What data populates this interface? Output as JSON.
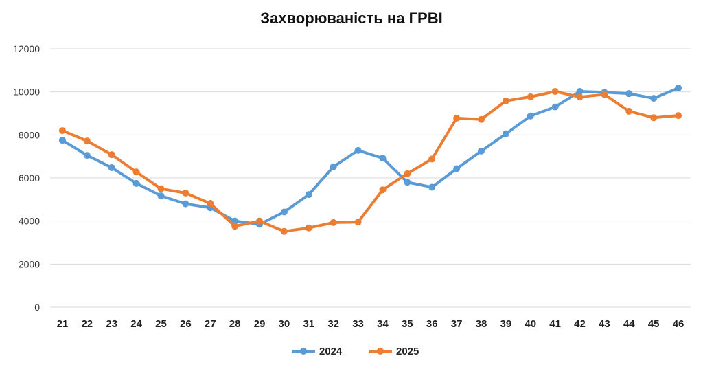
{
  "chart_data": {
    "type": "line",
    "title": "Захворюваність на ГРВІ",
    "xlabel": "",
    "ylabel": "",
    "ylim": [
      0,
      12000
    ],
    "yticks": [
      "0",
      "2000",
      "4000",
      "6000",
      "8000",
      "10000",
      "12000"
    ],
    "categories": [
      "21",
      "22",
      "23",
      "24",
      "25",
      "26",
      "27",
      "28",
      "29",
      "30",
      "31",
      "32",
      "33",
      "34",
      "35",
      "36",
      "37",
      "38",
      "39",
      "40",
      "41",
      "42",
      "43",
      "44",
      "45",
      "46"
    ],
    "grid": true,
    "legend_position": "bottom",
    "series": [
      {
        "name": "2024",
        "color": "#5b9bd5",
        "values": [
          7750,
          7050,
          6480,
          5750,
          5170,
          4800,
          4620,
          4000,
          3850,
          4420,
          5230,
          6520,
          7280,
          6920,
          5800,
          5570,
          6430,
          7250,
          8050,
          8880,
          9300,
          10020,
          9980,
          9920,
          9700,
          10180
        ]
      },
      {
        "name": "2025",
        "color": "#ed7d31",
        "values": [
          8200,
          7720,
          7080,
          6280,
          5500,
          5300,
          4820,
          3760,
          4000,
          3520,
          3680,
          3930,
          3950,
          5450,
          6200,
          6880,
          8780,
          8720,
          9580,
          9770,
          10020,
          9760,
          9880,
          9100,
          8800,
          8900
        ]
      }
    ]
  }
}
